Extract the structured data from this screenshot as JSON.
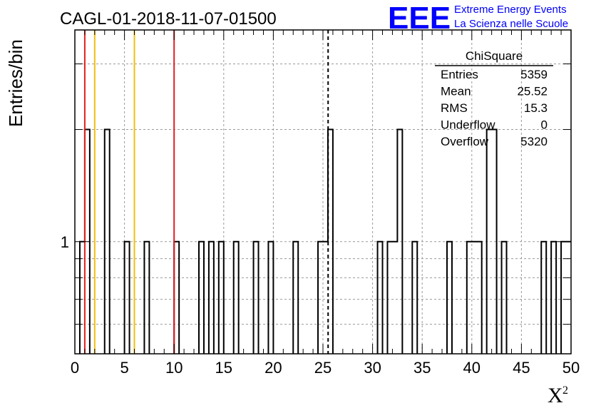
{
  "chart_data": {
    "type": "histogram",
    "title": "CAGL-01-2018-11-07-01500",
    "ylabel": "Entries/bin",
    "xlabel": "X",
    "xlabel_superscript": "2",
    "xlim": [
      0,
      50
    ],
    "ylim_log": [
      0.5,
      3.7
    ],
    "x_ticks": [
      "0",
      "5",
      "10",
      "15",
      "20",
      "25",
      "30",
      "35",
      "40",
      "45",
      "50"
    ],
    "y_ticks": [
      "1"
    ],
    "bin_width": 0.5,
    "bins": [
      {
        "x": 0.5,
        "count": 1
      },
      {
        "x": 1.0,
        "count": 2
      },
      {
        "x": 3.0,
        "count": 2
      },
      {
        "x": 5.0,
        "count": 1
      },
      {
        "x": 7.0,
        "count": 1
      },
      {
        "x": 10.0,
        "count": 1
      },
      {
        "x": 12.5,
        "count": 1
      },
      {
        "x": 13.5,
        "count": 1
      },
      {
        "x": 14.5,
        "count": 1
      },
      {
        "x": 16.0,
        "count": 1
      },
      {
        "x": 18.0,
        "count": 1
      },
      {
        "x": 19.5,
        "count": 1
      },
      {
        "x": 22.0,
        "count": 1
      },
      {
        "x": 24.5,
        "count": 1
      },
      {
        "x": 25.0,
        "count": 1
      },
      {
        "x": 25.5,
        "count": 2
      },
      {
        "x": 30.5,
        "count": 1
      },
      {
        "x": 31.5,
        "count": 1
      },
      {
        "x": 32.0,
        "count": 1
      },
      {
        "x": 32.5,
        "count": 2
      },
      {
        "x": 34.0,
        "count": 1
      },
      {
        "x": 37.5,
        "count": 1
      },
      {
        "x": 39.5,
        "count": 1
      },
      {
        "x": 40.0,
        "count": 1
      },
      {
        "x": 40.5,
        "count": 1
      },
      {
        "x": 41.5,
        "count": 2
      },
      {
        "x": 42.0,
        "count": 2
      },
      {
        "x": 43.0,
        "count": 1
      },
      {
        "x": 47.0,
        "count": 1
      },
      {
        "x": 48.0,
        "count": 1
      },
      {
        "x": 49.0,
        "count": 1
      },
      {
        "x": 49.5,
        "count": 1
      }
    ],
    "reference_lines": [
      {
        "x": 1.0,
        "color": "#e02020",
        "style": "solid"
      },
      {
        "x": 2.0,
        "color": "#f0c010",
        "style": "solid"
      },
      {
        "x": 6.0,
        "color": "#f0c010",
        "style": "solid"
      },
      {
        "x": 10.0,
        "color": "#e02020",
        "style": "solid"
      },
      {
        "x": 25.52,
        "color": "#000000",
        "style": "dashed"
      }
    ],
    "grid": true,
    "legend_position": "top-right"
  },
  "stats": {
    "title": "ChiSquare",
    "rows": [
      {
        "label": "Entries",
        "value": "5359"
      },
      {
        "label": "Mean",
        "value": "25.52"
      },
      {
        "label": "RMS",
        "value": "15.3"
      },
      {
        "label": "Underflow",
        "value": "0"
      },
      {
        "label": "Overflow",
        "value": "5320"
      }
    ]
  },
  "logo": {
    "letters": "EEE",
    "line1": "Extreme Energy Events",
    "line2": "La Scienza nelle Scuole",
    "color": "#0000ff"
  }
}
